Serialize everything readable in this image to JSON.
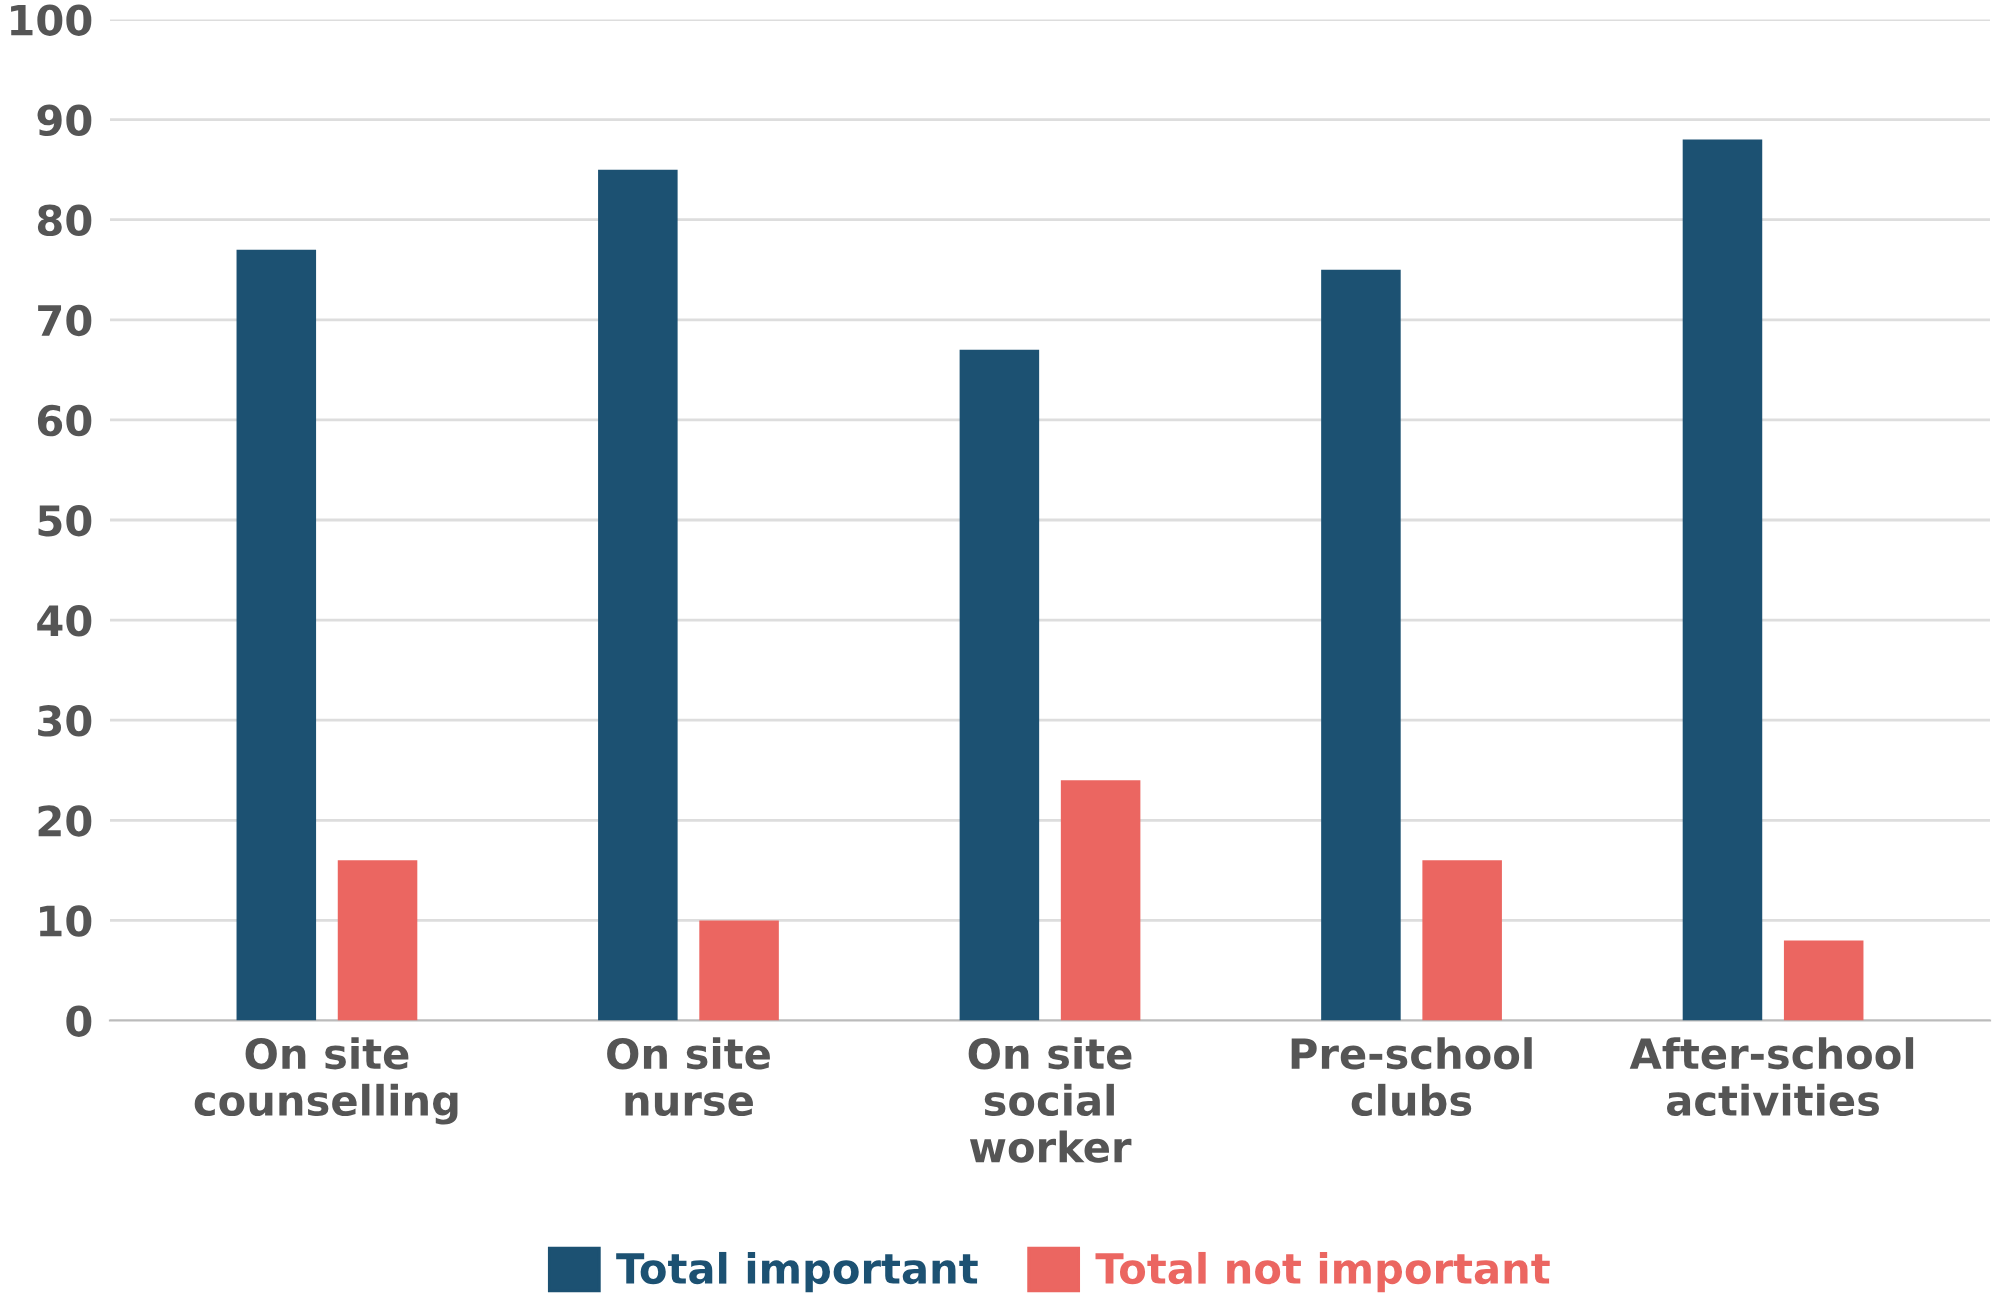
{
  "chart_data": {
    "type": "bar",
    "categories": [
      "On site\ncounselling",
      "On site\nnurse",
      "On site\nsocial\nworker",
      "Pre-school\nclubs",
      "After-school\nactivities"
    ],
    "series": [
      {
        "name": "Total important",
        "color": "#1c5172",
        "values": [
          77,
          85,
          67,
          75,
          88
        ]
      },
      {
        "name": "Total not important",
        "color": "#eb6661",
        "values": [
          16,
          10,
          24,
          16,
          8
        ]
      }
    ],
    "ylim": [
      0,
      100
    ],
    "yticks": [
      0,
      10,
      20,
      30,
      40,
      50,
      60,
      70,
      80,
      90,
      100
    ],
    "grid": "y",
    "legend": "bottom"
  }
}
